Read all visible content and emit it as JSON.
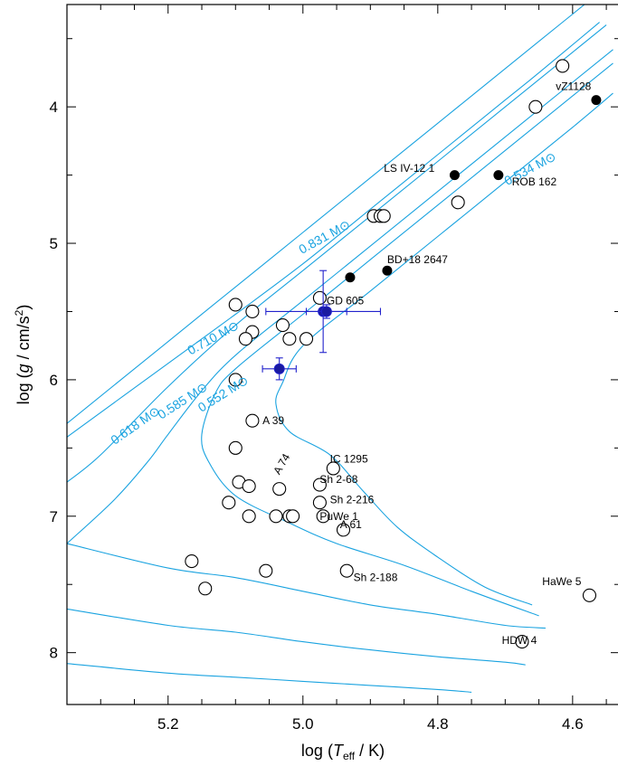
{
  "chart_data": {
    "type": "scatter",
    "xlabel_prefix": "log (",
    "xlabel_var": "T",
    "xlabel_sub": "eff",
    "xlabel_suffix": " / K)",
    "ylabel_prefix": "log (",
    "ylabel_var": "g",
    "ylabel_mid": " / cm/s",
    "ylabel_sup": "2",
    "ylabel_suffix": ")",
    "x_reversed": true,
    "y_reversed": true,
    "xlim": [
      5.35,
      4.53
    ],
    "ylim": [
      3.25,
      8.38
    ],
    "x_ticks": [
      "5.2",
      "5.0",
      "4.8",
      "4.6"
    ],
    "y_ticks": [
      "4",
      "5",
      "6",
      "7",
      "8"
    ],
    "colors": {
      "tracks": "#1aa3e0",
      "measured": "#2222cc",
      "axes": "#000000"
    },
    "tracks": [
      {
        "label": "0.831 M⊙",
        "points": [
          [
            5.35,
            6.32
          ],
          [
            5.2,
            5.72
          ],
          [
            5.1,
            5.32
          ],
          [
            5.0,
            4.92
          ],
          [
            4.9,
            4.52
          ],
          [
            4.8,
            4.12
          ],
          [
            4.7,
            3.72
          ],
          [
            4.65,
            3.52
          ],
          [
            4.57,
            3.2
          ]
        ]
      },
      {
        "label": "0.710 M⊙",
        "points": [
          [
            5.35,
            6.42
          ],
          [
            5.2,
            5.88
          ],
          [
            5.1,
            5.52
          ],
          [
            5.0,
            5.15
          ],
          [
            4.9,
            4.75
          ],
          [
            4.8,
            4.35
          ],
          [
            4.7,
            3.95
          ],
          [
            4.65,
            3.75
          ],
          [
            4.56,
            3.38
          ]
        ]
      },
      {
        "label": "0.618 M⊙",
        "points": [
          [
            5.35,
            6.75
          ],
          [
            5.3,
            6.55
          ],
          [
            5.2,
            6.05
          ],
          [
            5.1,
            5.6
          ],
          [
            5.0,
            5.2
          ],
          [
            4.9,
            4.8
          ],
          [
            4.8,
            4.4
          ],
          [
            4.7,
            4.0
          ],
          [
            4.6,
            3.6
          ],
          [
            4.55,
            3.4
          ]
        ]
      },
      {
        "label": "0.585 M⊙",
        "points": [
          [
            5.35,
            7.2
          ],
          [
            5.28,
            6.88
          ],
          [
            5.23,
            6.6
          ],
          [
            5.2,
            6.4
          ],
          [
            5.15,
            6.08
          ],
          [
            5.1,
            5.82
          ],
          [
            5.0,
            5.42
          ],
          [
            4.9,
            5.02
          ],
          [
            4.8,
            4.62
          ],
          [
            4.7,
            4.22
          ],
          [
            4.6,
            3.82
          ],
          [
            4.54,
            3.58
          ]
        ]
      },
      {
        "label": "0.552 M⊙",
        "points": [
          [
            4.65,
            7.73
          ],
          [
            4.75,
            7.55
          ],
          [
            4.85,
            7.36
          ],
          [
            4.95,
            7.2
          ],
          [
            5.02,
            7.05
          ],
          [
            5.1,
            6.85
          ],
          [
            5.14,
            6.6
          ],
          [
            5.15,
            6.4
          ],
          [
            5.13,
            6.1
          ],
          [
            5.1,
            5.92
          ],
          [
            5.0,
            5.52
          ],
          [
            4.9,
            5.12
          ],
          [
            4.8,
            4.72
          ],
          [
            4.7,
            4.32
          ],
          [
            4.6,
            3.92
          ],
          [
            4.54,
            3.68
          ]
        ]
      },
      {
        "label": "0.534 M⊙",
        "points": [
          [
            4.66,
            7.65
          ],
          [
            4.73,
            7.52
          ],
          [
            4.8,
            7.3
          ],
          [
            4.86,
            7.08
          ],
          [
            4.91,
            6.82
          ],
          [
            4.96,
            6.55
          ],
          [
            5.02,
            6.38
          ],
          [
            5.04,
            6.18
          ],
          [
            5.03,
            6.02
          ],
          [
            5.0,
            5.75
          ],
          [
            4.9,
            5.35
          ],
          [
            4.8,
            4.95
          ],
          [
            4.7,
            4.55
          ],
          [
            4.6,
            4.15
          ],
          [
            4.54,
            3.9
          ]
        ]
      }
    ],
    "cooling_tracks": [
      {
        "points": [
          [
            5.35,
            7.2
          ],
          [
            5.2,
            7.38
          ],
          [
            5.1,
            7.45
          ],
          [
            5.0,
            7.55
          ],
          [
            4.9,
            7.65
          ],
          [
            4.8,
            7.72
          ],
          [
            4.7,
            7.8
          ],
          [
            4.64,
            7.82
          ]
        ]
      },
      {
        "points": [
          [
            5.35,
            7.68
          ],
          [
            5.2,
            7.8
          ],
          [
            5.1,
            7.85
          ],
          [
            5.0,
            7.92
          ],
          [
            4.9,
            7.98
          ],
          [
            4.8,
            8.03
          ],
          [
            4.7,
            8.07
          ],
          [
            4.67,
            8.09
          ]
        ]
      },
      {
        "points": [
          [
            5.35,
            8.08
          ],
          [
            5.2,
            8.15
          ],
          [
            5.1,
            8.18
          ],
          [
            5.0,
            8.21
          ],
          [
            4.9,
            8.24
          ],
          [
            4.8,
            8.27
          ],
          [
            4.75,
            8.29
          ]
        ]
      }
    ],
    "track_labels": [
      {
        "text": "0.831 M⊙",
        "x": 4.965,
        "y": 4.98,
        "angle": -29
      },
      {
        "text": "0.710 M⊙",
        "x": 5.13,
        "y": 5.72,
        "angle": -29
      },
      {
        "text": "0.618 M⊙",
        "x": 5.245,
        "y": 6.36,
        "angle": -35
      },
      {
        "text": "0.585 M⊙",
        "x": 5.175,
        "y": 6.18,
        "angle": -33
      },
      {
        "text": "0.552 M⊙",
        "x": 5.115,
        "y": 6.13,
        "angle": -32
      },
      {
        "text": "0.534 M⊙",
        "x": 4.66,
        "y": 4.48,
        "angle": -28
      }
    ],
    "hollow_points": [
      [
        4.615,
        3.7
      ],
      [
        4.655,
        4.0
      ],
      [
        4.77,
        4.7
      ],
      [
        4.895,
        4.8
      ],
      [
        4.885,
        4.8
      ],
      [
        4.88,
        4.8
      ],
      [
        4.975,
        5.4
      ],
      [
        5.1,
        5.45
      ],
      [
        5.075,
        5.5
      ],
      [
        5.03,
        5.6
      ],
      [
        5.075,
        5.65
      ],
      [
        5.085,
        5.7
      ],
      [
        5.02,
        5.7
      ],
      [
        4.995,
        5.7
      ],
      [
        5.1,
        6.0
      ],
      [
        5.075,
        6.3
      ],
      [
        5.1,
        6.5
      ],
      [
        4.955,
        6.65
      ],
      [
        5.095,
        6.75
      ],
      [
        5.08,
        6.78
      ],
      [
        4.975,
        6.77
      ],
      [
        5.035,
        6.8
      ],
      [
        4.975,
        6.9
      ],
      [
        5.11,
        6.9
      ],
      [
        5.04,
        7.0
      ],
      [
        5.02,
        7.0
      ],
      [
        5.015,
        7.0
      ],
      [
        5.08,
        7.0
      ],
      [
        4.97,
        7.0
      ],
      [
        4.94,
        7.1
      ],
      [
        5.165,
        7.33
      ],
      [
        5.055,
        7.4
      ],
      [
        4.935,
        7.4
      ],
      [
        5.145,
        7.53
      ],
      [
        4.575,
        7.58
      ],
      [
        4.675,
        7.92
      ]
    ],
    "filled_points": [
      [
        4.565,
        3.95
      ],
      [
        4.775,
        4.5
      ],
      [
        4.71,
        4.5
      ],
      [
        4.875,
        5.2
      ],
      [
        4.93,
        5.25
      ]
    ],
    "measured_points": [
      {
        "x": 4.97,
        "y": 5.5,
        "xerr": 0.085,
        "yerr": 0.3
      },
      {
        "x": 4.965,
        "y": 5.5,
        "xerr": 0.03,
        "yerr": 0.05
      },
      {
        "x": 5.035,
        "y": 5.92,
        "xerr": 0.025,
        "yerr": 0.08
      }
    ],
    "star_labels": [
      {
        "text": "vZ1128",
        "x": 4.625,
        "y": 3.85
      },
      {
        "text": "LS IV-12 1",
        "x": 4.88,
        "y": 4.45
      },
      {
        "text": "ROB 162",
        "x": 4.69,
        "y": 4.55
      },
      {
        "text": "BD+18 2647",
        "x": 4.875,
        "y": 5.12
      },
      {
        "text": "GD 605",
        "x": 4.965,
        "y": 5.42
      },
      {
        "text": "A 39",
        "x": 5.06,
        "y": 6.3
      },
      {
        "text": "IC 1295",
        "x": 4.96,
        "y": 6.58
      },
      {
        "text": "Sh 2-68",
        "x": 4.975,
        "y": 6.73
      },
      {
        "text": "Sh 2-216",
        "x": 4.96,
        "y": 6.88
      },
      {
        "text": "PuWe 1",
        "x": 4.975,
        "y": 7.0
      },
      {
        "text": "A 61",
        "x": 4.945,
        "y": 7.06
      },
      {
        "text": "Sh 2-188",
        "x": 4.925,
        "y": 7.45
      },
      {
        "text": "HaWe 5",
        "x": 4.645,
        "y": 7.48
      },
      {
        "text": "HDW 4",
        "x": 4.705,
        "y": 7.91
      }
    ],
    "rotated_star_labels": [
      {
        "text": "A 74",
        "x": 5.035,
        "y": 6.7,
        "angle": -60
      }
    ]
  }
}
